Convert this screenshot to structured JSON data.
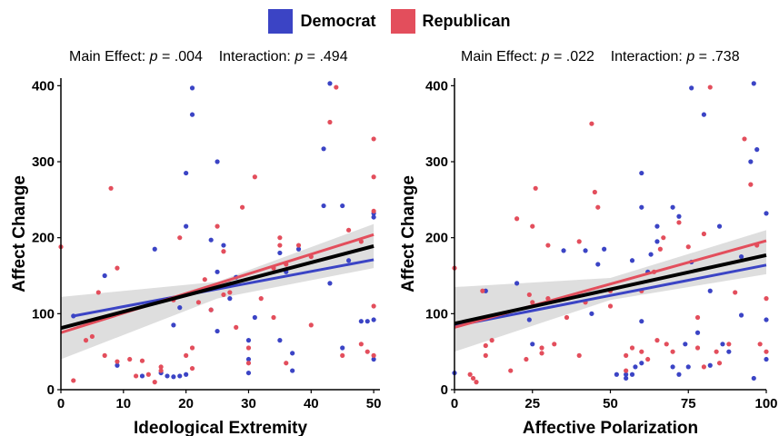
{
  "legend": [
    {
      "label": "Democrat",
      "color": "#3b44c5"
    },
    {
      "label": "Republican",
      "color": "#e34e5c"
    }
  ],
  "chart_data": [
    {
      "type": "scatter",
      "stat_text": [
        "Main Effect: ",
        "p",
        " = .004    Interaction: ",
        "p",
        " = .494"
      ],
      "xlabel": "Ideological Extremity",
      "ylabel": "Affect Change",
      "xlim": [
        0,
        51
      ],
      "ylim": [
        0,
        410
      ],
      "xticks": [
        0,
        10,
        20,
        30,
        40,
        50
      ],
      "yticks": [
        0,
        100,
        200,
        300,
        400
      ],
      "grid": false,
      "series": [
        {
          "name": "Democrat",
          "color": "#3b44c5",
          "points": [
            [
              2,
              97
            ],
            [
              7,
              150
            ],
            [
              9,
              32
            ],
            [
              13,
              18
            ],
            [
              15,
              185
            ],
            [
              16,
              22
            ],
            [
              17,
              18
            ],
            [
              18,
              85
            ],
            [
              18,
              17
            ],
            [
              19,
              108
            ],
            [
              19,
              18
            ],
            [
              20,
              20
            ],
            [
              20,
              215
            ],
            [
              20,
              285
            ],
            [
              21,
              362
            ],
            [
              21,
              397
            ],
            [
              24,
              105
            ],
            [
              24,
              197
            ],
            [
              25,
              77
            ],
            [
              25,
              300
            ],
            [
              25,
              155
            ],
            [
              26,
              190
            ],
            [
              27,
              120
            ],
            [
              28,
              148
            ],
            [
              30,
              40
            ],
            [
              30,
              65
            ],
            [
              30,
              22
            ],
            [
              31,
              95
            ],
            [
              35,
              180
            ],
            [
              35,
              65
            ],
            [
              36,
              155
            ],
            [
              37,
              25
            ],
            [
              37,
              48
            ],
            [
              38,
              185
            ],
            [
              42,
              317
            ],
            [
              42,
              242
            ],
            [
              43,
              403
            ],
            [
              43,
              140
            ],
            [
              45,
              55
            ],
            [
              45,
              242
            ],
            [
              46,
              170
            ],
            [
              48,
              90
            ],
            [
              49,
              90
            ],
            [
              50,
              232
            ],
            [
              50,
              227
            ],
            [
              50,
              40
            ],
            [
              50,
              92
            ]
          ]
        },
        {
          "name": "Republican",
          "color": "#e34e5c",
          "points": [
            [
              0,
              188
            ],
            [
              2,
              12
            ],
            [
              4,
              65
            ],
            [
              5,
              70
            ],
            [
              6,
              128
            ],
            [
              7,
              45
            ],
            [
              8,
              265
            ],
            [
              9,
              37
            ],
            [
              9,
              160
            ],
            [
              11,
              40
            ],
            [
              12,
              18
            ],
            [
              13,
              38
            ],
            [
              14,
              20
            ],
            [
              15,
              10
            ],
            [
              16,
              25
            ],
            [
              16,
              30
            ],
            [
              18,
              118
            ],
            [
              19,
              200
            ],
            [
              20,
              45
            ],
            [
              21,
              28
            ],
            [
              21,
              55
            ],
            [
              22,
              115
            ],
            [
              23,
              145
            ],
            [
              24,
              105
            ],
            [
              25,
              215
            ],
            [
              26,
              182
            ],
            [
              26,
              125
            ],
            [
              27,
              128
            ],
            [
              28,
              82
            ],
            [
              29,
              240
            ],
            [
              30,
              35
            ],
            [
              30,
              55
            ],
            [
              31,
              280
            ],
            [
              32,
              120
            ],
            [
              34,
              160
            ],
            [
              34,
              95
            ],
            [
              35,
              190
            ],
            [
              35,
              200
            ],
            [
              36,
              35
            ],
            [
              36,
              165
            ],
            [
              38,
              190
            ],
            [
              40,
              175
            ],
            [
              40,
              85
            ],
            [
              43,
              352
            ],
            [
              44,
              398
            ],
            [
              45,
              45
            ],
            [
              46,
              210
            ],
            [
              48,
              60
            ],
            [
              48,
              195
            ],
            [
              49,
              50
            ],
            [
              50,
              330
            ],
            [
              50,
              280
            ],
            [
              50,
              110
            ],
            [
              50,
              45
            ],
            [
              50,
              235
            ]
          ]
        }
      ],
      "fit_lines": [
        {
          "name": "Democrat",
          "color": "#3b44c5",
          "x": [
            2,
            50
          ],
          "y": [
            97,
            171
          ]
        },
        {
          "name": "Republican",
          "color": "#e34e5c",
          "x": [
            0,
            50
          ],
          "y": [
            75,
            204
          ]
        },
        {
          "name": "Overall",
          "color": "#000000",
          "x": [
            0,
            50
          ],
          "y": [
            81,
            189
          ]
        }
      ],
      "confidence_band": {
        "x": [
          0,
          25,
          50
        ],
        "lower": [
          40,
          120,
          160
        ],
        "upper": [
          122,
          142,
          218
        ]
      }
    },
    {
      "type": "scatter",
      "stat_text": [
        "Main Effect: ",
        "p",
        " = .022    Interaction: ",
        "p",
        " = .738"
      ],
      "xlabel": "Affective Polarization",
      "ylabel": "Affect Change",
      "xlim": [
        0,
        100
      ],
      "ylim": [
        0,
        410
      ],
      "xticks": [
        0,
        25,
        50,
        75,
        100
      ],
      "yticks": [
        0,
        100,
        200,
        300,
        400
      ],
      "grid": false,
      "series": [
        {
          "name": "Democrat",
          "color": "#3b44c5",
          "points": [
            [
              0,
              22
            ],
            [
              10,
              130
            ],
            [
              20,
              140
            ],
            [
              24,
              92
            ],
            [
              25,
              60
            ],
            [
              35,
              183
            ],
            [
              42,
              183
            ],
            [
              44,
              100
            ],
            [
              46,
              165
            ],
            [
              48,
              185
            ],
            [
              52,
              20
            ],
            [
              55,
              20
            ],
            [
              55,
              15
            ],
            [
              57,
              20
            ],
            [
              57,
              170
            ],
            [
              58,
              30
            ],
            [
              60,
              35
            ],
            [
              60,
              90
            ],
            [
              60,
              240
            ],
            [
              60,
              285
            ],
            [
              62,
              155
            ],
            [
              63,
              178
            ],
            [
              65,
              215
            ],
            [
              65,
              195
            ],
            [
              70,
              30
            ],
            [
              70,
              240
            ],
            [
              72,
              20
            ],
            [
              72,
              228
            ],
            [
              74,
              60
            ],
            [
              75,
              30
            ],
            [
              76,
              168
            ],
            [
              76,
              397
            ],
            [
              78,
              75
            ],
            [
              80,
              362
            ],
            [
              82,
              32
            ],
            [
              82,
              130
            ],
            [
              85,
              215
            ],
            [
              86,
              60
            ],
            [
              88,
              50
            ],
            [
              92,
              98
            ],
            [
              92,
              175
            ],
            [
              95,
              300
            ],
            [
              96,
              15
            ],
            [
              96,
              403
            ],
            [
              97,
              316
            ],
            [
              100,
              40
            ],
            [
              100,
              92
            ],
            [
              100,
              232
            ]
          ]
        },
        {
          "name": "Republican",
          "color": "#e34e5c",
          "points": [
            [
              0,
              160
            ],
            [
              5,
              20
            ],
            [
              6,
              15
            ],
            [
              7,
              10
            ],
            [
              9,
              130
            ],
            [
              10,
              45
            ],
            [
              10,
              58
            ],
            [
              12,
              65
            ],
            [
              18,
              25
            ],
            [
              20,
              225
            ],
            [
              23,
              40
            ],
            [
              24,
              125
            ],
            [
              25,
              115
            ],
            [
              25,
              215
            ],
            [
              26,
              265
            ],
            [
              28,
              55
            ],
            [
              28,
              48
            ],
            [
              30,
              190
            ],
            [
              30,
              120
            ],
            [
              32,
              60
            ],
            [
              36,
              95
            ],
            [
              40,
              45
            ],
            [
              40,
              195
            ],
            [
              42,
              115
            ],
            [
              44,
              350
            ],
            [
              45,
              260
            ],
            [
              46,
              240
            ],
            [
              50,
              110
            ],
            [
              50,
              130
            ],
            [
              55,
              45
            ],
            [
              55,
              25
            ],
            [
              57,
              55
            ],
            [
              60,
              130
            ],
            [
              60,
              50
            ],
            [
              62,
              40
            ],
            [
              64,
              155
            ],
            [
              65,
              65
            ],
            [
              66,
              185
            ],
            [
              67,
              200
            ],
            [
              68,
              60
            ],
            [
              70,
              50
            ],
            [
              72,
              220
            ],
            [
              75,
              188
            ],
            [
              78,
              55
            ],
            [
              78,
              95
            ],
            [
              80,
              205
            ],
            [
              80,
              30
            ],
            [
              82,
              398
            ],
            [
              84,
              50
            ],
            [
              85,
              35
            ],
            [
              88,
              60
            ],
            [
              90,
              128
            ],
            [
              93,
              330
            ],
            [
              95,
              270
            ],
            [
              97,
              190
            ],
            [
              98,
              60
            ],
            [
              100,
              50
            ],
            [
              100,
              120
            ]
          ]
        }
      ],
      "fit_lines": [
        {
          "name": "Democrat",
          "color": "#3b44c5",
          "x": [
            0,
            100
          ],
          "y": [
            84,
            164
          ]
        },
        {
          "name": "Republican",
          "color": "#e34e5c",
          "x": [
            0,
            100
          ],
          "y": [
            82,
            196
          ]
        },
        {
          "name": "Overall",
          "color": "#000000",
          "x": [
            0,
            100
          ],
          "y": [
            87,
            177
          ]
        }
      ],
      "confidence_band": {
        "x": [
          0,
          50,
          100
        ],
        "lower": [
          50,
          118,
          152
        ],
        "upper": [
          135,
          147,
          210
        ]
      }
    }
  ]
}
